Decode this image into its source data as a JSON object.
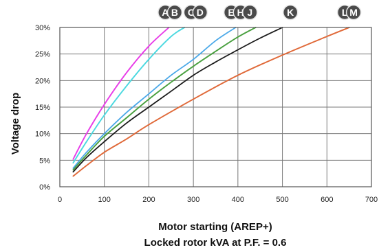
{
  "chart_data": {
    "type": "line",
    "title": "",
    "xlabel_lines": [
      "Motor starting (AREP+)",
      "Locked rotor kVA at P.F. = 0.6"
    ],
    "ylabel": "Voltage drop",
    "xlim": [
      0,
      700
    ],
    "ylim": [
      0,
      30
    ],
    "x_ticks": [
      0,
      100,
      200,
      300,
      400,
      500,
      600,
      700
    ],
    "x_tick_labels": [
      "0",
      "100",
      "200",
      "300",
      "400",
      "500",
      "600",
      "700"
    ],
    "y_ticks": [
      0,
      5,
      10,
      15,
      20,
      25,
      30
    ],
    "y_tick_labels": [
      "0%",
      "5%",
      "10%",
      "15%",
      "20%",
      "25%",
      "30%"
    ],
    "grid": true,
    "series": [
      {
        "name": "A",
        "color": "#e83ee8",
        "x": [
          30,
          60,
          100,
          150,
          200,
          245
        ],
        "y": [
          5.2,
          10,
          15.5,
          21.5,
          26.5,
          30
        ]
      },
      {
        "name": "B",
        "color": "#e83ee8",
        "x": [
          30,
          60,
          100,
          150,
          200,
          245
        ],
        "y": [
          5.2,
          10,
          15.5,
          21.5,
          26.5,
          30
        ]
      },
      {
        "name": "C",
        "color": "#4dd9e0",
        "x": [
          30,
          60,
          100,
          150,
          200,
          250,
          280
        ],
        "y": [
          4.5,
          8.5,
          13.5,
          19,
          24,
          28.3,
          30
        ]
      },
      {
        "name": "D",
        "color": "#4dd9e0",
        "x": [
          30,
          60,
          100,
          150,
          200,
          250,
          280
        ],
        "y": [
          4.5,
          8.5,
          13.5,
          19,
          24,
          28.3,
          30
        ]
      },
      {
        "name": "E",
        "color": "#4aa8e8",
        "x": [
          30,
          60,
          100,
          150,
          200,
          250,
          300,
          350,
          395
        ],
        "y": [
          3.5,
          6.5,
          10,
          14,
          17.5,
          21,
          24,
          27.5,
          30
        ]
      },
      {
        "name": "H",
        "color": "#4aa040",
        "x": [
          30,
          60,
          100,
          150,
          200,
          250,
          300,
          350,
          400,
          440
        ],
        "y": [
          3.2,
          6,
          9.5,
          13,
          16.5,
          19.7,
          22.7,
          25.5,
          28.2,
          30
        ]
      },
      {
        "name": "J",
        "color": "#4aa040",
        "x": [
          30,
          60,
          100,
          150,
          200,
          250,
          300,
          350,
          400,
          440
        ],
        "y": [
          3.2,
          6,
          9.5,
          13,
          16.5,
          19.7,
          22.7,
          25.5,
          28.2,
          30
        ]
      },
      {
        "name": "K",
        "color": "#1a1a1a",
        "x": [
          30,
          60,
          100,
          150,
          200,
          250,
          300,
          350,
          400,
          450,
          500
        ],
        "y": [
          2.8,
          5.5,
          8.5,
          12,
          15,
          18,
          21,
          23.5,
          25.8,
          28,
          30
        ]
      },
      {
        "name": "L",
        "color": "#e06a3a",
        "x": [
          30,
          60,
          100,
          150,
          200,
          300,
          400,
          500,
          600,
          650
        ],
        "y": [
          2,
          4,
          6.5,
          9,
          11.7,
          16.5,
          21,
          24.8,
          28.3,
          30
        ]
      },
      {
        "name": "M",
        "color": "#e06a3a",
        "x": [
          30,
          60,
          100,
          150,
          200,
          300,
          400,
          500,
          600,
          650
        ],
        "y": [
          2,
          4,
          6.5,
          9,
          11.7,
          16.5,
          21,
          24.8,
          28.3,
          30
        ]
      }
    ],
    "badges": [
      {
        "label": "A",
        "x": 237
      },
      {
        "label": "B",
        "x": 258
      },
      {
        "label": "C",
        "x": 295
      },
      {
        "label": "D",
        "x": 315
      },
      {
        "label": "E",
        "x": 385
      },
      {
        "label": "H",
        "x": 406
      },
      {
        "label": "J",
        "x": 427
      },
      {
        "label": "K",
        "x": 518
      },
      {
        "label": "L",
        "x": 640
      },
      {
        "label": "M",
        "x": 660
      }
    ]
  }
}
